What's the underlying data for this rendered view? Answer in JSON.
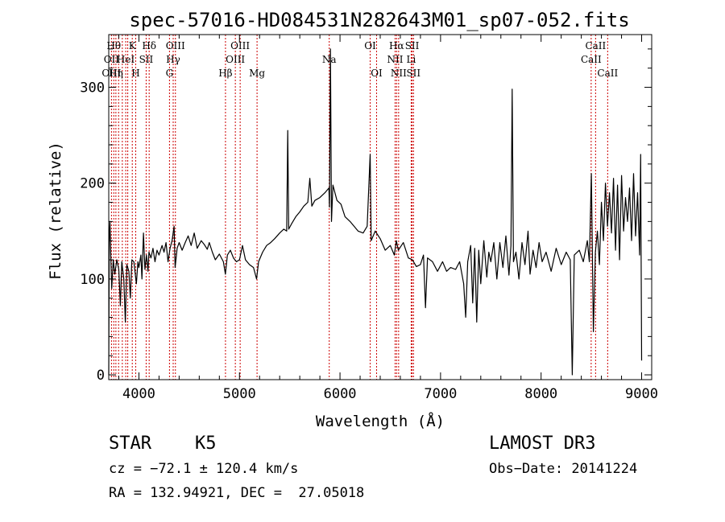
{
  "chart_data": {
    "type": "line",
    "title": "spec-57016-HD084531N282643M01_sp07-052.fits",
    "xlabel": "Wavelength (Å)",
    "ylabel": "Flux (relative)",
    "xlim": [
      3700,
      9100
    ],
    "ylim": [
      -5,
      355
    ],
    "xticks": [
      "4000",
      "5000",
      "6000",
      "7000",
      "8000",
      "9000"
    ],
    "yticks": [
      "0",
      "100",
      "200",
      "300"
    ],
    "grid": false,
    "series": [
      {
        "color": "#000000",
        "points": [
          [
            3700,
            0
          ],
          [
            3705,
            140
          ],
          [
            3712,
            160
          ],
          [
            3720,
            125
          ],
          [
            3730,
            90
          ],
          [
            3745,
            120
          ],
          [
            3760,
            105
          ],
          [
            3780,
            120
          ],
          [
            3800,
            110
          ],
          [
            3815,
            72
          ],
          [
            3830,
            118
          ],
          [
            3850,
            100
          ],
          [
            3865,
            55
          ],
          [
            3880,
            115
          ],
          [
            3900,
            108
          ],
          [
            3915,
            80
          ],
          [
            3930,
            120
          ],
          [
            3950,
            118
          ],
          [
            3975,
            95
          ],
          [
            3990,
            118
          ],
          [
            4000,
            112
          ],
          [
            4020,
            125
          ],
          [
            4030,
            100
          ],
          [
            4045,
            148
          ],
          [
            4060,
            110
          ],
          [
            4075,
            125
          ],
          [
            4090,
            108
          ],
          [
            4100,
            128
          ],
          [
            4120,
            122
          ],
          [
            4140,
            132
          ],
          [
            4160,
            118
          ],
          [
            4180,
            130
          ],
          [
            4200,
            125
          ],
          [
            4230,
            135
          ],
          [
            4250,
            128
          ],
          [
            4270,
            138
          ],
          [
            4290,
            118
          ],
          [
            4310,
            132
          ],
          [
            4330,
            140
          ],
          [
            4350,
            155
          ],
          [
            4360,
            112
          ],
          [
            4380,
            132
          ],
          [
            4400,
            138
          ],
          [
            4430,
            130
          ],
          [
            4460,
            138
          ],
          [
            4490,
            145
          ],
          [
            4520,
            135
          ],
          [
            4550,
            148
          ],
          [
            4580,
            132
          ],
          [
            4620,
            140
          ],
          [
            4650,
            136
          ],
          [
            4680,
            131
          ],
          [
            4700,
            138
          ],
          [
            4730,
            128
          ],
          [
            4760,
            120
          ],
          [
            4800,
            126
          ],
          [
            4840,
            118
          ],
          [
            4860,
            105
          ],
          [
            4880,
            125
          ],
          [
            4910,
            130
          ],
          [
            4940,
            122
          ],
          [
            4970,
            118
          ],
          [
            5000,
            120
          ],
          [
            5030,
            135
          ],
          [
            5060,
            120
          ],
          [
            5100,
            115
          ],
          [
            5140,
            112
          ],
          [
            5170,
            100
          ],
          [
            5190,
            118
          ],
          [
            5230,
            128
          ],
          [
            5270,
            135
          ],
          [
            5310,
            138
          ],
          [
            5350,
            142
          ],
          [
            5400,
            148
          ],
          [
            5440,
            152
          ],
          [
            5470,
            150
          ],
          [
            5480,
            255
          ],
          [
            5490,
            152
          ],
          [
            5520,
            158
          ],
          [
            5560,
            165
          ],
          [
            5600,
            170
          ],
          [
            5640,
            176
          ],
          [
            5680,
            180
          ],
          [
            5700,
            205
          ],
          [
            5720,
            176
          ],
          [
            5750,
            182
          ],
          [
            5800,
            185
          ],
          [
            5850,
            190
          ],
          [
            5890,
            195
          ],
          [
            5895,
            175
          ],
          [
            5905,
            340
          ],
          [
            5915,
            160
          ],
          [
            5930,
            198
          ],
          [
            5970,
            182
          ],
          [
            6010,
            178
          ],
          [
            6050,
            165
          ],
          [
            6100,
            160
          ],
          [
            6140,
            155
          ],
          [
            6180,
            150
          ],
          [
            6230,
            148
          ],
          [
            6270,
            155
          ],
          [
            6300,
            230
          ],
          [
            6310,
            140
          ],
          [
            6350,
            150
          ],
          [
            6400,
            142
          ],
          [
            6450,
            130
          ],
          [
            6500,
            135
          ],
          [
            6540,
            125
          ],
          [
            6560,
            140
          ],
          [
            6580,
            130
          ],
          [
            6630,
            138
          ],
          [
            6680,
            122
          ],
          [
            6720,
            120
          ],
          [
            6760,
            113
          ],
          [
            6800,
            115
          ],
          [
            6830,
            125
          ],
          [
            6850,
            70
          ],
          [
            6870,
            122
          ],
          [
            6920,
            118
          ],
          [
            6970,
            108
          ],
          [
            7020,
            118
          ],
          [
            7060,
            108
          ],
          [
            7100,
            112
          ],
          [
            7150,
            110
          ],
          [
            7190,
            118
          ],
          [
            7230,
            95
          ],
          [
            7250,
            60
          ],
          [
            7270,
            118
          ],
          [
            7300,
            135
          ],
          [
            7320,
            75
          ],
          [
            7340,
            132
          ],
          [
            7360,
            55
          ],
          [
            7380,
            130
          ],
          [
            7400,
            95
          ],
          [
            7430,
            140
          ],
          [
            7460,
            102
          ],
          [
            7480,
            128
          ],
          [
            7500,
            118
          ],
          [
            7530,
            138
          ],
          [
            7560,
            100
          ],
          [
            7590,
            138
          ],
          [
            7620,
            112
          ],
          [
            7650,
            145
          ],
          [
            7680,
            104
          ],
          [
            7700,
            135
          ],
          [
            7712,
            298
          ],
          [
            7725,
            118
          ],
          [
            7750,
            128
          ],
          [
            7780,
            100
          ],
          [
            7810,
            138
          ],
          [
            7840,
            115
          ],
          [
            7870,
            150
          ],
          [
            7890,
            105
          ],
          [
            7920,
            130
          ],
          [
            7950,
            112
          ],
          [
            7980,
            138
          ],
          [
            8010,
            118
          ],
          [
            8050,
            128
          ],
          [
            8100,
            108
          ],
          [
            8150,
            132
          ],
          [
            8200,
            115
          ],
          [
            8250,
            128
          ],
          [
            8290,
            120
          ],
          [
            8310,
            0
          ],
          [
            8330,
            125
          ],
          [
            8380,
            130
          ],
          [
            8420,
            118
          ],
          [
            8460,
            140
          ],
          [
            8480,
            118
          ],
          [
            8500,
            210
          ],
          [
            8520,
            45
          ],
          [
            8540,
            128
          ],
          [
            8560,
            150
          ],
          [
            8580,
            115
          ],
          [
            8600,
            180
          ],
          [
            8620,
            140
          ],
          [
            8640,
            200
          ],
          [
            8660,
            155
          ],
          [
            8680,
            190
          ],
          [
            8700,
            148
          ],
          [
            8720,
            205
          ],
          [
            8740,
            130
          ],
          [
            8760,
            198
          ],
          [
            8780,
            120
          ],
          [
            8800,
            208
          ],
          [
            8820,
            150
          ],
          [
            8840,
            185
          ],
          [
            8860,
            160
          ],
          [
            8880,
            195
          ],
          [
            8900,
            140
          ],
          [
            8920,
            210
          ],
          [
            8940,
            145
          ],
          [
            8960,
            190
          ],
          [
            8980,
            125
          ],
          [
            8990,
            230
          ],
          [
            9000,
            15
          ]
        ]
      }
    ],
    "lines": [
      {
        "x": 3727,
        "labels": [
          {
            "text": "OII",
            "row": 2
          },
          {
            "text": "OIII",
            "row": 3
          }
        ]
      },
      {
        "x": 3750,
        "labels": [
          {
            "text": "Hθ",
            "row": 1
          }
        ]
      },
      {
        "x": 3771,
        "labels": [
          {
            "text": "Hη",
            "row": 3
          }
        ]
      },
      {
        "x": 3798,
        "labels": []
      },
      {
        "x": 3835,
        "labels": []
      },
      {
        "x": 3869,
        "labels": [
          {
            "text": "HeI",
            "row": 2
          }
        ]
      },
      {
        "x": 3889,
        "labels": []
      },
      {
        "x": 3934,
        "labels": [
          {
            "text": "K",
            "row": 1
          }
        ]
      },
      {
        "x": 3968,
        "labels": [
          {
            "text": "H",
            "row": 3
          }
        ]
      },
      {
        "x": 4072,
        "labels": [
          {
            "text": "SII",
            "row": 2
          }
        ]
      },
      {
        "x": 4102,
        "labels": [
          {
            "text": "Hδ",
            "row": 1
          }
        ]
      },
      {
        "x": 4304,
        "labels": [
          {
            "text": "G",
            "row": 3
          }
        ]
      },
      {
        "x": 4341,
        "labels": [
          {
            "text": "Hγ",
            "row": 2
          }
        ]
      },
      {
        "x": 4363,
        "labels": [
          {
            "text": "OIII",
            "row": 1
          }
        ]
      },
      {
        "x": 4861,
        "labels": [
          {
            "text": "Hβ",
            "row": 3
          }
        ]
      },
      {
        "x": 4959,
        "labels": [
          {
            "text": "OIII",
            "row": 2
          }
        ]
      },
      {
        "x": 5007,
        "labels": [
          {
            "text": "OIII",
            "row": 1
          }
        ]
      },
      {
        "x": 5175,
        "labels": [
          {
            "text": "Mg",
            "row": 3
          }
        ]
      },
      {
        "x": 5893,
        "labels": [
          {
            "text": "Na",
            "row": 2
          }
        ]
      },
      {
        "x": 6300,
        "labels": [
          {
            "text": "OI",
            "row": 1
          }
        ]
      },
      {
        "x": 6364,
        "labels": [
          {
            "text": "OI",
            "row": 3
          }
        ]
      },
      {
        "x": 6548,
        "labels": [
          {
            "text": "NII",
            "row": 2
          }
        ]
      },
      {
        "x": 6563,
        "labels": [
          {
            "text": "Hα",
            "row": 1
          }
        ]
      },
      {
        "x": 6583,
        "labels": [
          {
            "text": "NII",
            "row": 3
          }
        ]
      },
      {
        "x": 6708,
        "labels": [
          {
            "text": "Li",
            "row": 2
          }
        ]
      },
      {
        "x": 6717,
        "labels": [
          {
            "text": "SII",
            "row": 1
          }
        ]
      },
      {
        "x": 6731,
        "labels": [
          {
            "text": "SII",
            "row": 3
          }
        ]
      },
      {
        "x": 8498,
        "labels": [
          {
            "text": "CaII",
            "row": 2
          }
        ]
      },
      {
        "x": 8542,
        "labels": [
          {
            "text": "CaII",
            "row": 1
          }
        ]
      },
      {
        "x": 8662,
        "labels": [
          {
            "text": "CaII",
            "row": 3
          }
        ]
      }
    ],
    "colors": {
      "spectrum": "#000000",
      "line_markers": "#cc0000",
      "axes": "#000000"
    }
  },
  "info": {
    "class": "STAR",
    "subclass": "K5",
    "survey": "LAMOST DR3",
    "cz": "cz = −72.1 ± 120.4 km/s",
    "obs_date": "Obs−Date: 20141224",
    "coords": "RA = 132.94921, DEC =  27.05018"
  }
}
